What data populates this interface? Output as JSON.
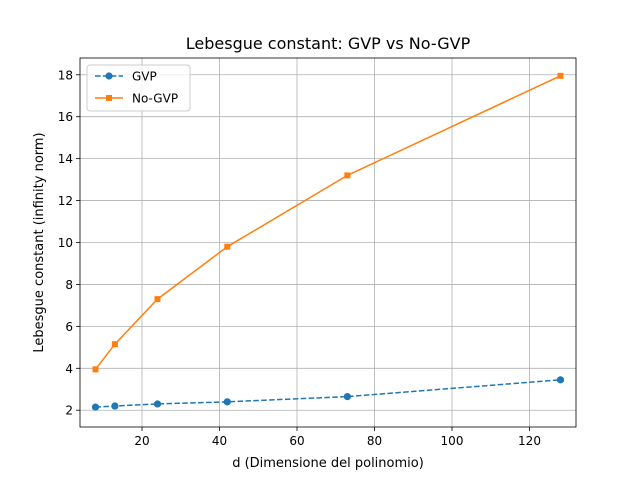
{
  "chart_data": {
    "type": "line",
    "title": "Lebesgue constant: GVP vs No-GVP",
    "xlabel": "d (Dimensione del polinomio)",
    "ylabel": "Lebesgue constant (infinity norm)",
    "xlim": [
      4,
      132
    ],
    "ylim": [
      1.2,
      18.8
    ],
    "xticks": [
      20,
      40,
      60,
      80,
      100,
      120
    ],
    "yticks": [
      2,
      4,
      6,
      8,
      10,
      12,
      14,
      16,
      18
    ],
    "grid": true,
    "legend_position": "top-left",
    "series": [
      {
        "name": "GVP",
        "color": "#1f77b4",
        "linestyle": "dashed",
        "marker": "circle",
        "x": [
          8,
          13,
          24,
          42,
          73,
          128
        ],
        "y": [
          2.15,
          2.2,
          2.3,
          2.4,
          2.65,
          3.45
        ]
      },
      {
        "name": "No-GVP",
        "color": "#ff7f0e",
        "linestyle": "solid",
        "marker": "square",
        "x": [
          8,
          13,
          24,
          42,
          73,
          128
        ],
        "y": [
          3.95,
          5.15,
          7.3,
          9.8,
          13.2,
          17.95
        ]
      }
    ]
  }
}
